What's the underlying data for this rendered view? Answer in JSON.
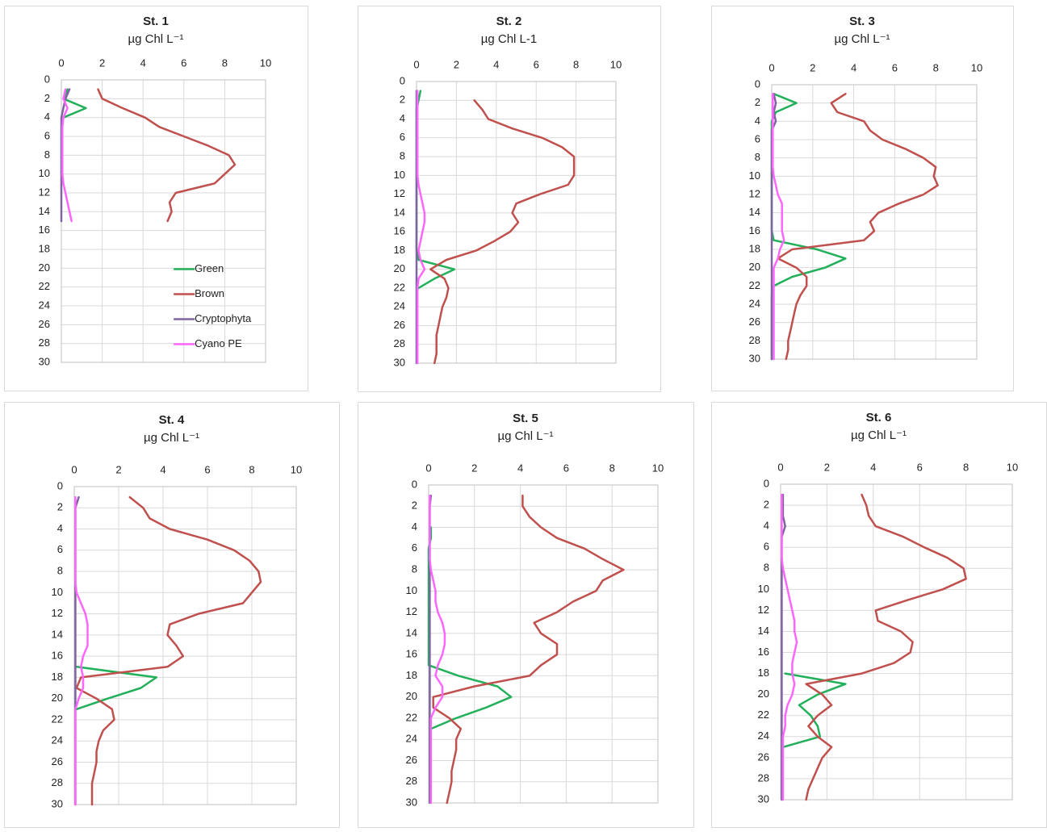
{
  "chart_data": [
    {
      "type": "line",
      "title": "St. 1",
      "subtitle": "µg Chl L⁻¹",
      "xlim": [
        0,
        10
      ],
      "xticks": [
        0,
        2,
        4,
        6,
        8,
        10
      ],
      "ylim": [
        0,
        30
      ],
      "yticks": [
        0,
        2,
        4,
        6,
        8,
        10,
        12,
        14,
        16,
        18,
        20,
        22,
        24,
        26,
        28,
        30
      ],
      "y_inverted": true,
      "grid": true,
      "legend": "lower right",
      "depth": [
        1,
        2,
        3,
        4,
        5,
        6,
        7,
        8,
        9,
        10,
        11,
        12,
        13,
        14,
        15
      ],
      "series": [
        {
          "name": "Green",
          "color": "#22b05a",
          "values": [
            0.3,
            0.1,
            1.2,
            0.1,
            null,
            null,
            null,
            null,
            null,
            null,
            null,
            null,
            null,
            null,
            null
          ]
        },
        {
          "name": "Brown",
          "color": "#c0504d",
          "values": [
            1.8,
            2.0,
            3.0,
            4.1,
            4.8,
            6.0,
            7.2,
            8.2,
            8.5,
            8.0,
            7.5,
            5.6,
            5.3,
            5.4,
            5.2
          ]
        },
        {
          "name": "Cryptophyta",
          "color": "#8064a2",
          "values": [
            0.4,
            0.2,
            0.1,
            0,
            0,
            0,
            0,
            0,
            0,
            0,
            0,
            0,
            0,
            0,
            0
          ]
        },
        {
          "name": "Cyano PE",
          "color": "#ff66ff",
          "values": [
            0.2,
            0.1,
            0.3,
            0.1,
            0.05,
            0.05,
            0.05,
            0.05,
            0.05,
            0.05,
            0.1,
            0.2,
            0.3,
            0.4,
            0.5
          ]
        }
      ]
    },
    {
      "type": "line",
      "title": "St. 2",
      "subtitle": "µg Chl L-1",
      "xlim": [
        0,
        10
      ],
      "xticks": [
        0,
        2,
        4,
        6,
        8,
        10
      ],
      "ylim": [
        0,
        30
      ],
      "yticks": [
        0,
        2,
        4,
        6,
        8,
        10,
        12,
        14,
        16,
        18,
        20,
        22,
        24,
        26,
        28,
        30
      ],
      "y_inverted": true,
      "grid": true,
      "depth": [
        1,
        2,
        3,
        4,
        5,
        6,
        7,
        8,
        9,
        10,
        11,
        12,
        13,
        14,
        15,
        16,
        17,
        18,
        19,
        20,
        21,
        22,
        23,
        24,
        25,
        26,
        27,
        28,
        29,
        30
      ],
      "series": [
        {
          "name": "Green",
          "color": "#22b05a",
          "values": [
            0.2,
            0.1,
            0,
            0,
            0,
            0,
            0,
            0,
            0,
            0,
            0,
            0,
            0,
            0,
            0,
            0,
            0,
            0,
            0.1,
            1.9,
            0.9,
            0.1,
            null,
            null,
            null,
            null,
            null,
            null,
            null,
            null
          ]
        },
        {
          "name": "Brown",
          "color": "#c0504d",
          "values": [
            null,
            2.9,
            3.3,
            3.6,
            4.8,
            6.3,
            7.3,
            7.9,
            7.9,
            7.9,
            7.6,
            6.2,
            5.0,
            4.8,
            5.1,
            4.7,
            3.9,
            3.0,
            1.5,
            0.7,
            1.4,
            1.6,
            1.5,
            1.3,
            1.2,
            1.1,
            1.0,
            1.0,
            1.0,
            0.9
          ]
        },
        {
          "name": "Cryptophyta",
          "color": "#8064a2",
          "values": [
            0,
            0,
            0,
            0,
            0,
            0,
            0,
            0,
            0,
            0,
            0,
            0,
            0,
            0,
            0,
            0,
            0,
            0,
            0,
            0,
            0,
            0,
            0,
            0,
            0,
            0,
            0,
            0,
            0,
            0
          ]
        },
        {
          "name": "Cyano PE",
          "color": "#ff66ff",
          "values": [
            0.05,
            0.05,
            0.05,
            0.05,
            0.05,
            0.05,
            0.05,
            0.05,
            0.05,
            0.05,
            0.1,
            0.2,
            0.3,
            0.4,
            0.4,
            0.3,
            0.2,
            0.1,
            0.2,
            0.4,
            0.1,
            0.05,
            0.05,
            0.05,
            0.05,
            0.05,
            0.05,
            0.05,
            0.05,
            0.05
          ]
        }
      ]
    },
    {
      "type": "line",
      "title": "St. 3",
      "subtitle": "µg Chl L⁻¹",
      "xlim": [
        0,
        10
      ],
      "xticks": [
        0,
        2,
        4,
        6,
        8,
        10
      ],
      "ylim": [
        0,
        30
      ],
      "yticks": [
        0,
        2,
        4,
        6,
        8,
        10,
        12,
        14,
        16,
        18,
        20,
        22,
        24,
        26,
        28,
        30
      ],
      "y_inverted": true,
      "grid": true,
      "depth": [
        1,
        2,
        3,
        4,
        5,
        6,
        7,
        8,
        9,
        10,
        11,
        12,
        13,
        14,
        15,
        16,
        17,
        18,
        19,
        20,
        21,
        22,
        23,
        24,
        25,
        26,
        27,
        28,
        29,
        30
      ],
      "series": [
        {
          "name": "Green",
          "color": "#22b05a",
          "values": [
            0.1,
            1.2,
            0.2,
            0,
            0,
            0,
            0,
            0,
            0,
            0,
            0,
            0,
            0,
            0,
            0,
            0,
            0.1,
            2.2,
            3.6,
            2.6,
            1.0,
            0.1,
            0,
            0,
            0,
            0,
            0,
            0,
            0,
            0
          ]
        },
        {
          "name": "Brown",
          "color": "#c0504d",
          "values": [
            3.6,
            2.9,
            3.2,
            4.5,
            4.8,
            5.4,
            6.5,
            7.4,
            8.0,
            7.9,
            8.1,
            7.4,
            6.2,
            5.2,
            4.8,
            5.0,
            4.5,
            1.0,
            0.3,
            1.2,
            1.7,
            1.7,
            1.4,
            1.2,
            1.1,
            1.0,
            0.9,
            0.8,
            0.8,
            0.7
          ]
        },
        {
          "name": "Cryptophyta",
          "color": "#8064a2",
          "values": [
            0.1,
            0.2,
            0.1,
            0.2,
            0,
            0,
            0,
            0,
            0,
            0,
            0,
            0,
            0,
            0,
            0,
            0,
            0,
            0,
            0,
            0,
            0,
            0,
            0,
            0,
            0,
            0,
            0,
            0,
            0,
            0
          ]
        },
        {
          "name": "Cyano PE",
          "color": "#ff66ff",
          "values": [
            0.05,
            0.05,
            0.05,
            0.05,
            0.05,
            0.05,
            0.05,
            0.05,
            0.05,
            0.1,
            0.2,
            0.3,
            0.5,
            0.5,
            0.5,
            0.5,
            0.6,
            0.4,
            0.3,
            0.1,
            0.1,
            0.1,
            0.1,
            0.1,
            0.1,
            0.1,
            0.1,
            0.1,
            0.1,
            0.1
          ]
        }
      ]
    },
    {
      "type": "line",
      "title": "St. 4",
      "subtitle": "µg Chl L⁻¹",
      "xlim": [
        0,
        10
      ],
      "xticks": [
        0,
        2,
        4,
        6,
        8,
        10
      ],
      "ylim": [
        0,
        30
      ],
      "yticks": [
        0,
        2,
        4,
        6,
        8,
        10,
        12,
        14,
        16,
        18,
        20,
        22,
        24,
        26,
        28,
        30
      ],
      "y_inverted": true,
      "grid": true,
      "depth": [
        1,
        2,
        3,
        4,
        5,
        6,
        7,
        8,
        9,
        10,
        11,
        12,
        13,
        14,
        15,
        16,
        17,
        18,
        19,
        20,
        21,
        22,
        23,
        24,
        25,
        26,
        27,
        28,
        29,
        30
      ],
      "series": [
        {
          "name": "Green",
          "color": "#22b05a",
          "values": [
            null,
            null,
            null,
            null,
            null,
            null,
            null,
            null,
            null,
            null,
            null,
            null,
            null,
            null,
            null,
            null,
            0.1,
            3.7,
            3.0,
            1.5,
            0.1,
            null,
            null,
            null,
            null,
            null,
            null,
            null,
            null,
            null
          ]
        },
        {
          "name": "Brown",
          "color": "#c0504d",
          "values": [
            2.5,
            3.1,
            3.4,
            4.3,
            6.0,
            7.2,
            7.9,
            8.3,
            8.4,
            8.0,
            7.6,
            5.6,
            4.3,
            4.2,
            4.6,
            4.9,
            4.2,
            0.3,
            0.1,
            1.0,
            1.7,
            1.8,
            1.3,
            1.1,
            1.0,
            1.0,
            0.9,
            0.8,
            0.8,
            0.8
          ]
        },
        {
          "name": "Cryptophyta",
          "color": "#8064a2",
          "values": [
            0.2,
            0.05,
            0.05,
            0.05,
            0.05,
            0.05,
            0.05,
            0.05,
            0.05,
            0.05,
            0.05,
            0.05,
            0.05,
            0.05,
            0.05,
            0.05,
            0.05,
            0.05,
            0.05,
            0.05,
            0.05,
            0.05,
            0.05,
            0.05,
            0.05,
            0.05,
            0.05,
            0.05,
            0.05,
            0.05
          ]
        },
        {
          "name": "Cyano PE",
          "color": "#ff66ff",
          "values": [
            0.05,
            0.05,
            0.05,
            0.05,
            0.05,
            0.05,
            0.05,
            0.05,
            0.05,
            0.1,
            0.3,
            0.5,
            0.6,
            0.6,
            0.6,
            0.4,
            0.3,
            0.4,
            0.4,
            0.2,
            0.05,
            0.05,
            0.05,
            0.05,
            0.05,
            0.05,
            0.05,
            0.05,
            0.05,
            0.05
          ]
        }
      ]
    },
    {
      "type": "line",
      "title": "St. 5",
      "subtitle": "µg Chl L⁻¹",
      "xlim": [
        0,
        10
      ],
      "xticks": [
        0,
        2,
        4,
        6,
        8,
        10
      ],
      "ylim": [
        0,
        30
      ],
      "yticks": [
        0,
        2,
        4,
        6,
        8,
        10,
        12,
        14,
        16,
        18,
        20,
        22,
        24,
        26,
        28,
        30
      ],
      "y_inverted": true,
      "grid": true,
      "depth": [
        1,
        2,
        3,
        4,
        5,
        6,
        7,
        8,
        9,
        10,
        11,
        12,
        13,
        14,
        15,
        16,
        17,
        18,
        19,
        20,
        21,
        22,
        23,
        24,
        25,
        26,
        27,
        28,
        29,
        30
      ],
      "series": [
        {
          "name": "Green",
          "color": "#22b05a",
          "values": [
            null,
            null,
            null,
            0.1,
            0.1,
            0,
            0,
            0,
            0,
            0,
            0,
            0,
            0,
            0,
            0,
            0,
            0,
            1.3,
            3.0,
            3.6,
            2.5,
            1.2,
            0.1,
            null,
            null,
            null,
            null,
            null,
            null,
            null
          ]
        },
        {
          "name": "Brown",
          "color": "#c0504d",
          "values": [
            4.1,
            4.1,
            4.4,
            4.9,
            5.6,
            6.8,
            7.6,
            8.5,
            7.6,
            7.3,
            6.3,
            5.6,
            4.6,
            4.9,
            5.6,
            5.6,
            4.9,
            4.4,
            2.0,
            0.2,
            0.2,
            0.9,
            1.4,
            1.2,
            1.2,
            1.1,
            1.0,
            1.0,
            0.9,
            0.8
          ]
        },
        {
          "name": "Cryptophyta",
          "color": "#8064a2",
          "values": [
            0.1,
            0.05,
            0.05,
            0.05,
            0.05,
            0.05,
            0.05,
            0.05,
            0.05,
            0.05,
            0.05,
            0.05,
            0.05,
            0.05,
            0.05,
            0.05,
            0.05,
            0.05,
            0.05,
            0.05,
            0.05,
            0.05,
            0.05,
            0.05,
            0.05,
            0.05,
            0.05,
            0.05,
            0.05,
            0.05
          ]
        },
        {
          "name": "Cyano PE",
          "color": "#ff66ff",
          "values": [
            0.05,
            0.05,
            0.05,
            0.05,
            0.05,
            0.05,
            0.05,
            0.1,
            0.2,
            0.3,
            0.3,
            0.4,
            0.6,
            0.7,
            0.7,
            0.6,
            0.4,
            0.3,
            0.6,
            0.6,
            0.3,
            0.1,
            0.1,
            0.1,
            0.1,
            0.1,
            0.1,
            0.1,
            0.1,
            0.1
          ]
        }
      ]
    },
    {
      "type": "line",
      "title": "St. 6",
      "subtitle": "µg Chl L⁻¹",
      "xlim": [
        0,
        10
      ],
      "xticks": [
        0,
        2,
        4,
        6,
        8,
        10
      ],
      "ylim": [
        0,
        30
      ],
      "yticks": [
        0,
        2,
        4,
        6,
        8,
        10,
        12,
        14,
        16,
        18,
        20,
        22,
        24,
        26,
        28,
        30
      ],
      "y_inverted": true,
      "grid": true,
      "depth": [
        1,
        2,
        3,
        4,
        5,
        6,
        7,
        8,
        9,
        10,
        11,
        12,
        13,
        14,
        15,
        16,
        17,
        18,
        19,
        20,
        21,
        22,
        23,
        24,
        25,
        26,
        27,
        28,
        29,
        30
      ],
      "series": [
        {
          "name": "Green",
          "color": "#22b05a",
          "values": [
            null,
            null,
            null,
            null,
            null,
            null,
            null,
            null,
            null,
            null,
            null,
            null,
            null,
            null,
            null,
            null,
            null,
            0.2,
            2.8,
            1.6,
            0.8,
            1.3,
            1.6,
            1.7,
            0.1,
            null,
            null,
            null,
            null,
            null
          ]
        },
        {
          "name": "Brown",
          "color": "#c0504d",
          "values": [
            3.5,
            3.7,
            3.8,
            4.1,
            5.3,
            6.2,
            7.2,
            7.9,
            8.0,
            7.0,
            5.5,
            4.1,
            4.2,
            5.2,
            5.7,
            5.6,
            4.9,
            3.5,
            1.1,
            1.8,
            2.2,
            1.6,
            1.2,
            1.6,
            2.2,
            1.8,
            1.6,
            1.4,
            1.2,
            1.1
          ]
        },
        {
          "name": "Cryptophyta",
          "color": "#8064a2",
          "values": [
            0.1,
            0.1,
            0.1,
            0.2,
            0.05,
            0.05,
            0.05,
            0.05,
            0.05,
            0.05,
            0.05,
            0.05,
            0.05,
            0.05,
            0.05,
            0.05,
            0.05,
            0.05,
            0.05,
            0.05,
            0.05,
            0.05,
            0.05,
            0.05,
            0.05,
            0.05,
            0.05,
            0.05,
            0.05,
            0.05
          ]
        },
        {
          "name": "Cyano PE",
          "color": "#ff66ff",
          "values": [
            0.05,
            0.05,
            0.05,
            0.05,
            0.05,
            0.05,
            0.05,
            0.1,
            0.2,
            0.3,
            0.4,
            0.5,
            0.6,
            0.6,
            0.7,
            0.6,
            0.5,
            0.5,
            0.6,
            0.5,
            0.3,
            0.2,
            0.2,
            0.1,
            0.1,
            0.1,
            0.1,
            0.1,
            0.1,
            0.1
          ]
        }
      ]
    }
  ]
}
